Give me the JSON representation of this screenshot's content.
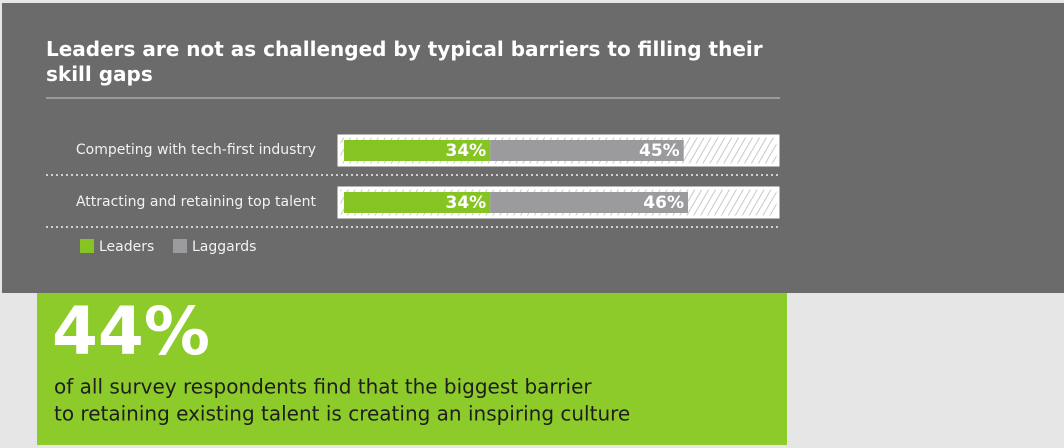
{
  "chart_data": {
    "type": "stacked-bar-horizontal",
    "title": "Leaders are not as challenged by typical barriers to filling their skill gaps",
    "categories": [
      "Competing with tech-first industry",
      "Attracting and retaining top talent"
    ],
    "series": [
      {
        "name": "Leaders",
        "color": "#86c424",
        "values": [
          34,
          34
        ],
        "value_labels": [
          "34%",
          "34%"
        ]
      },
      {
        "name": "Laggards",
        "color": "#9b9b9d",
        "values": [
          45,
          46
        ],
        "value_labels": [
          "45%",
          "46%"
        ]
      }
    ],
    "xlim": [
      0,
      100
    ]
  },
  "callout": {
    "figure": "44%",
    "text_lines": [
      "of all survey respondents find that the biggest barrier",
      "to retaining existing talent is creating an inspiring culture"
    ]
  }
}
